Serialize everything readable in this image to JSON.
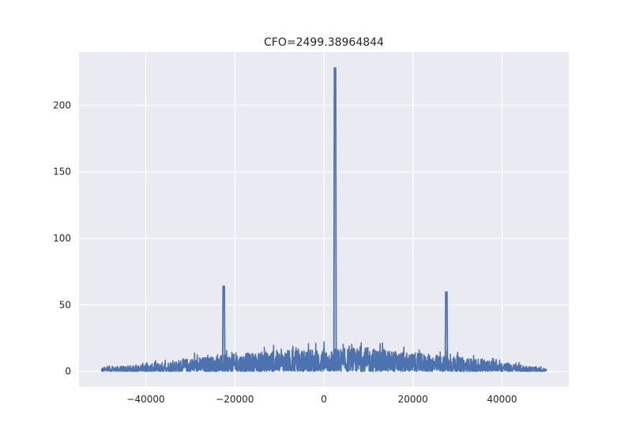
{
  "chart_data": {
    "type": "line",
    "title": "CFO=2499.38964844",
    "xlabel": "",
    "ylabel": "",
    "xlim": [
      -55000,
      55000
    ],
    "ylim": [
      -11.5,
      240
    ],
    "x_ticks": [
      -40000,
      -20000,
      0,
      20000,
      40000
    ],
    "x_tick_labels": [
      "−40000",
      "−20000",
      "0",
      "20000",
      "40000"
    ],
    "y_ticks": [
      0,
      50,
      100,
      150,
      200
    ],
    "y_tick_labels": [
      "0",
      "50",
      "100",
      "150",
      "200"
    ],
    "grid": true,
    "style": "seaborn",
    "colors": {
      "axes_background": "#EAEAF2",
      "grid": "#FFFFFF",
      "line": "#4C72B0",
      "text": "#262626"
    },
    "series": [
      {
        "x_range": [
          -50000,
          50000
        ],
        "noise_floor_envelope": {
          "x": [
            -50000,
            -40000,
            -30000,
            -20000,
            -10000,
            0,
            10000,
            20000,
            30000,
            40000,
            50000
          ],
          "y_max": [
            3,
            5,
            10,
            13,
            16,
            17,
            18,
            14,
            11,
            7,
            2
          ]
        },
        "peaks": [
          {
            "x": -22500,
            "y": 64
          },
          {
            "x": 2499.39,
            "y": 228
          },
          {
            "x": 27500,
            "y": 59.5
          }
        ]
      }
    ]
  }
}
